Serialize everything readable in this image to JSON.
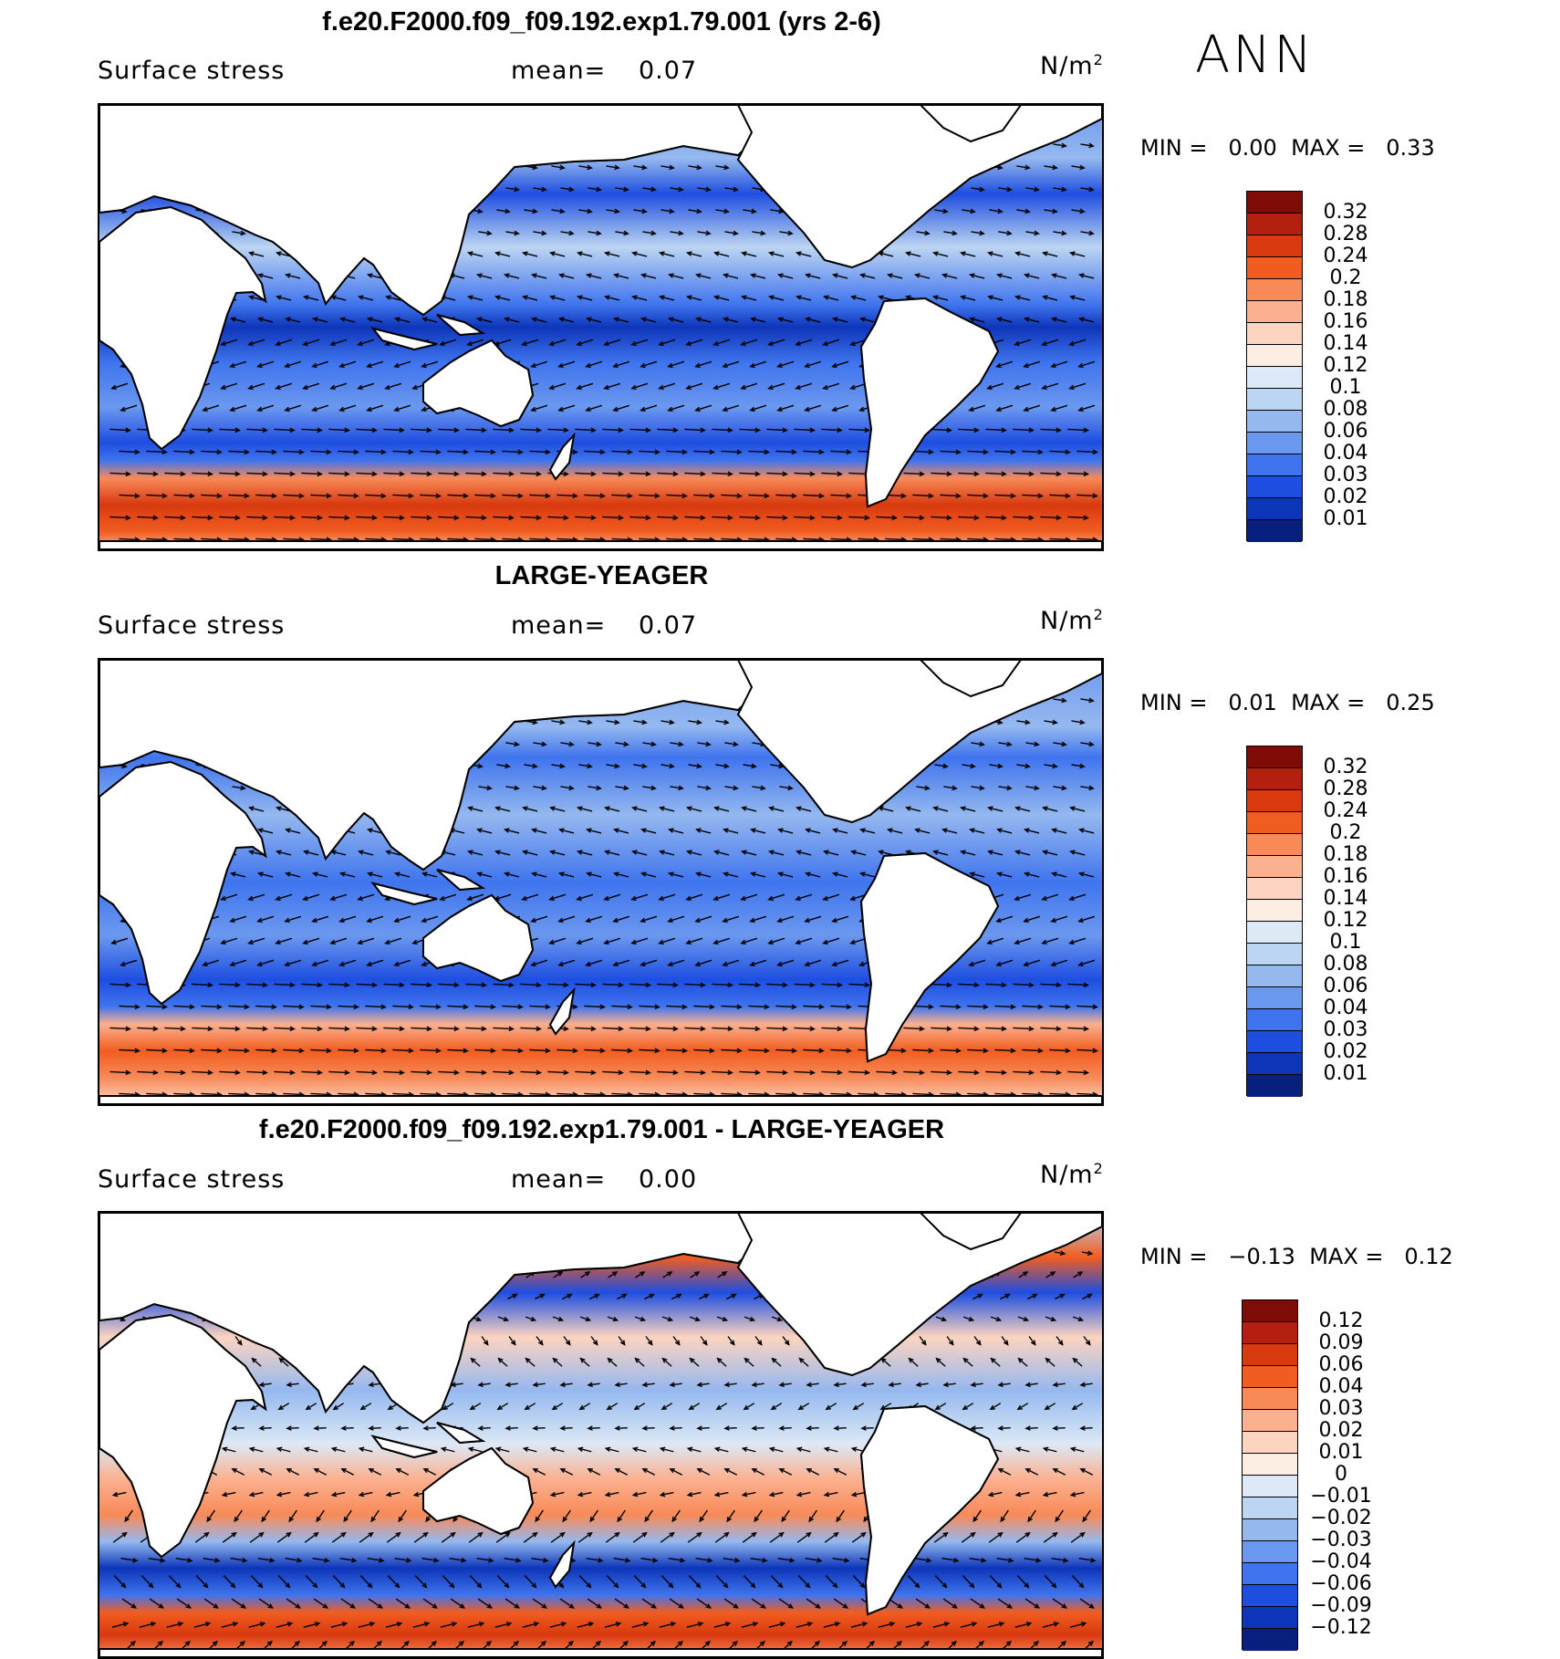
{
  "season": "ANN",
  "panels": [
    {
      "title": "f.e20.F2000.f09_f09.192.exp1.79.001 (yrs 2-6)",
      "variable": "Surface stress",
      "mean_label": "mean=",
      "mean_value": "0.07",
      "units": "N/m",
      "units_exp": "2",
      "min_label": "MIN =",
      "min_value": "0.00",
      "max_label": "MAX =",
      "max_value": "0.33",
      "colorbar": {
        "labels": [
          "0.32",
          "0.28",
          "0.24",
          "0.2",
          "0.18",
          "0.16",
          "0.14",
          "0.12",
          "0.1",
          "0.08",
          "0.06",
          "0.04",
          "0.03",
          "0.02",
          "0.01"
        ],
        "colors": [
          "#7f0c06",
          "#b3200f",
          "#d8390f",
          "#f15d20",
          "#f88a58",
          "#fbb08f",
          "#fcd4c0",
          "#fdeee4",
          "#dde9f6",
          "#bcd5f2",
          "#95b8ef",
          "#6b98ef",
          "#3f74ee",
          "#1e4ee0",
          "#0d35b8",
          "#081f7e"
        ]
      },
      "field": "model"
    },
    {
      "title": "LARGE-YEAGER",
      "variable": "Surface stress",
      "mean_label": "mean=",
      "mean_value": "0.07",
      "units": "N/m",
      "units_exp": "2",
      "min_label": "MIN =",
      "min_value": "0.01",
      "max_label": "MAX =",
      "max_value": "0.25",
      "colorbar": {
        "labels": [
          "0.32",
          "0.28",
          "0.24",
          "0.2",
          "0.18",
          "0.16",
          "0.14",
          "0.12",
          "0.1",
          "0.08",
          "0.06",
          "0.04",
          "0.03",
          "0.02",
          "0.01"
        ],
        "colors": [
          "#7f0c06",
          "#b3200f",
          "#d8390f",
          "#f15d20",
          "#f88a58",
          "#fbb08f",
          "#fcd4c0",
          "#fdeee4",
          "#dde9f6",
          "#bcd5f2",
          "#95b8ef",
          "#6b98ef",
          "#3f74ee",
          "#1e4ee0",
          "#0d35b8",
          "#081f7e"
        ]
      },
      "field": "obs"
    },
    {
      "title": "f.e20.F2000.f09_f09.192.exp1.79.001 - LARGE-YEAGER",
      "variable": "Surface stress",
      "mean_label": "mean=",
      "mean_value": "0.00",
      "units": "N/m",
      "units_exp": "2",
      "min_label": "MIN =",
      "min_value": "−0.13",
      "max_label": "MAX =",
      "max_value": "0.12",
      "colorbar": {
        "labels": [
          "0.12",
          "0.09",
          "0.06",
          "0.04",
          "0.03",
          "0.02",
          "0.01",
          "0",
          "−0.01",
          "−0.02",
          "−0.03",
          "−0.04",
          "−0.06",
          "−0.09",
          "−0.12"
        ],
        "colors": [
          "#7f0c06",
          "#b3200f",
          "#d8390f",
          "#f15d20",
          "#f88a58",
          "#fbb08f",
          "#fcd4c0",
          "#fdeee4",
          "#dde9f6",
          "#bcd5f2",
          "#95b8ef",
          "#6b98ef",
          "#3f74ee",
          "#1e4ee0",
          "#0d35b8",
          "#081f7e"
        ]
      },
      "field": "diff"
    }
  ]
}
